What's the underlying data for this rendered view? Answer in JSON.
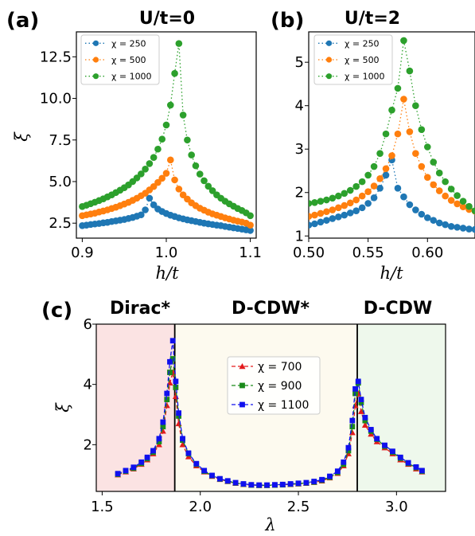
{
  "chart_data": [
    {
      "panel": "(a)",
      "type": "scatter",
      "title": "U/t=0",
      "xlabel": "h/t",
      "ylabel": "ξ",
      "xlim": [
        0.893,
        1.107
      ],
      "ylim": [
        1.6,
        14.0
      ],
      "xticks": [
        "0.9",
        "1.0",
        "1.1"
      ],
      "yticks": [
        "2.5",
        "5.0",
        "7.5",
        "10.0",
        "12.5"
      ],
      "legend_position": "upper left",
      "series": [
        {
          "name": "χ = 250",
          "color": "#1f77b4",
          "x": [
            0.9,
            0.905,
            0.91,
            0.915,
            0.92,
            0.925,
            0.93,
            0.935,
            0.94,
            0.945,
            0.95,
            0.955,
            0.96,
            0.965,
            0.97,
            0.975,
            0.98,
            0.985,
            0.99,
            0.995,
            1.0,
            1.005,
            1.01,
            1.015,
            1.02,
            1.025,
            1.03,
            1.035,
            1.04,
            1.045,
            1.05,
            1.055,
            1.06,
            1.065,
            1.07,
            1.075,
            1.08,
            1.085,
            1.09,
            1.095,
            1.1
          ],
          "y": [
            2.35,
            2.38,
            2.42,
            2.45,
            2.48,
            2.52,
            2.55,
            2.6,
            2.64,
            2.68,
            2.72,
            2.78,
            2.84,
            2.92,
            3.0,
            3.3,
            4.0,
            3.6,
            3.35,
            3.2,
            3.08,
            2.98,
            2.9,
            2.82,
            2.76,
            2.7,
            2.65,
            2.6,
            2.55,
            2.5,
            2.46,
            2.42,
            2.38,
            2.35,
            2.3,
            2.26,
            2.22,
            2.18,
            2.14,
            2.1,
            2.06
          ]
        },
        {
          "name": "χ = 500",
          "color": "#ff7f0e",
          "x": [
            0.9,
            0.905,
            0.91,
            0.915,
            0.92,
            0.925,
            0.93,
            0.935,
            0.94,
            0.945,
            0.95,
            0.955,
            0.96,
            0.965,
            0.97,
            0.975,
            0.98,
            0.985,
            0.99,
            0.995,
            1.0,
            1.005,
            1.01,
            1.015,
            1.02,
            1.025,
            1.03,
            1.035,
            1.04,
            1.045,
            1.05,
            1.055,
            1.06,
            1.065,
            1.07,
            1.075,
            1.08,
            1.085,
            1.09,
            1.095,
            1.1
          ],
          "y": [
            2.95,
            3.0,
            3.05,
            3.1,
            3.17,
            3.23,
            3.3,
            3.38,
            3.46,
            3.55,
            3.65,
            3.75,
            3.87,
            4.0,
            4.15,
            4.3,
            4.5,
            4.7,
            4.95,
            5.2,
            5.5,
            6.3,
            5.1,
            4.55,
            4.2,
            3.95,
            3.72,
            3.55,
            3.4,
            3.28,
            3.16,
            3.06,
            2.98,
            2.9,
            2.82,
            2.75,
            2.68,
            2.62,
            2.57,
            2.5,
            2.38
          ]
        },
        {
          "name": "χ = 1000",
          "color": "#2ca02c",
          "x": [
            0.9,
            0.905,
            0.91,
            0.915,
            0.92,
            0.925,
            0.93,
            0.935,
            0.94,
            0.945,
            0.95,
            0.955,
            0.96,
            0.965,
            0.97,
            0.975,
            0.98,
            0.985,
            0.99,
            0.995,
            1.0,
            1.005,
            1.01,
            1.015,
            1.02,
            1.025,
            1.03,
            1.035,
            1.04,
            1.045,
            1.05,
            1.055,
            1.06,
            1.065,
            1.07,
            1.075,
            1.08,
            1.085,
            1.09,
            1.095,
            1.1
          ],
          "y": [
            3.5,
            3.58,
            3.67,
            3.76,
            3.86,
            3.96,
            4.08,
            4.2,
            4.34,
            4.48,
            4.63,
            4.8,
            5.0,
            5.22,
            5.46,
            5.75,
            6.08,
            6.45,
            6.95,
            7.55,
            8.4,
            9.6,
            11.5,
            13.3,
            9.0,
            7.5,
            6.6,
            5.95,
            5.45,
            5.05,
            4.72,
            4.45,
            4.2,
            4.0,
            3.82,
            3.66,
            3.52,
            3.38,
            3.26,
            3.12,
            2.95
          ]
        }
      ]
    },
    {
      "panel": "(b)",
      "type": "scatter",
      "title": "U/t=2",
      "xlabel": "h/t",
      "ylabel": "",
      "xlim": [
        0.5,
        0.64
      ],
      "ylim": [
        0.95,
        5.7
      ],
      "xticks": [
        "0.50",
        "0.55",
        "0.60"
      ],
      "yticks": [
        "1",
        "2",
        "3",
        "4",
        "5"
      ],
      "legend_position": "upper left",
      "series": [
        {
          "name": "χ = 250",
          "color": "#1f77b4",
          "x": [
            0.5,
            0.505,
            0.51,
            0.515,
            0.52,
            0.525,
            0.53,
            0.535,
            0.54,
            0.545,
            0.55,
            0.555,
            0.56,
            0.565,
            0.57,
            0.575,
            0.58,
            0.585,
            0.59,
            0.595,
            0.6,
            0.605,
            0.61,
            0.615,
            0.62,
            0.625,
            0.63,
            0.635,
            0.64
          ],
          "y": [
            1.25,
            1.28,
            1.32,
            1.36,
            1.4,
            1.44,
            1.48,
            1.53,
            1.58,
            1.65,
            1.75,
            1.88,
            2.1,
            2.4,
            2.75,
            2.1,
            1.9,
            1.72,
            1.6,
            1.5,
            1.42,
            1.36,
            1.3,
            1.26,
            1.22,
            1.2,
            1.18,
            1.16,
            1.15
          ]
        },
        {
          "name": "χ = 500",
          "color": "#ff7f0e",
          "x": [
            0.5,
            0.505,
            0.51,
            0.515,
            0.52,
            0.525,
            0.53,
            0.535,
            0.54,
            0.545,
            0.55,
            0.555,
            0.56,
            0.565,
            0.57,
            0.575,
            0.58,
            0.585,
            0.59,
            0.595,
            0.6,
            0.605,
            0.61,
            0.615,
            0.62,
            0.625,
            0.63,
            0.635,
            0.64
          ],
          "y": [
            1.45,
            1.48,
            1.52,
            1.56,
            1.6,
            1.65,
            1.7,
            1.76,
            1.83,
            1.92,
            2.02,
            2.15,
            2.32,
            2.55,
            2.85,
            3.35,
            4.15,
            3.4,
            2.9,
            2.6,
            2.35,
            2.18,
            2.04,
            1.92,
            1.82,
            1.74,
            1.67,
            1.61,
            1.57
          ]
        },
        {
          "name": "χ = 1000",
          "color": "#2ca02c",
          "x": [
            0.5,
            0.505,
            0.51,
            0.515,
            0.52,
            0.525,
            0.53,
            0.535,
            0.54,
            0.545,
            0.55,
            0.555,
            0.56,
            0.565,
            0.57,
            0.575,
            0.58,
            0.585,
            0.59,
            0.595,
            0.6,
            0.605,
            0.61,
            0.615,
            0.62,
            0.625,
            0.63,
            0.635,
            0.64
          ],
          "y": [
            1.75,
            1.77,
            1.8,
            1.83,
            1.87,
            1.92,
            1.98,
            2.05,
            2.14,
            2.25,
            2.4,
            2.6,
            2.9,
            3.35,
            3.9,
            4.4,
            5.5,
            4.8,
            4.0,
            3.45,
            3.05,
            2.7,
            2.45,
            2.25,
            2.08,
            1.93,
            1.8,
            1.68,
            1.58
          ]
        }
      ]
    },
    {
      "panel": "(c)",
      "type": "line",
      "title": "",
      "xlabel": "λ",
      "ylabel": "ξ",
      "xlim": [
        1.47,
        3.25
      ],
      "ylim": [
        0.45,
        6.0
      ],
      "xticks": [
        "1.5",
        "2.0",
        "2.5",
        "3.0"
      ],
      "yticks": [
        "2",
        "4",
        "6"
      ],
      "legend_position": "center",
      "phase_boundaries": [
        1.87,
        2.8
      ],
      "regions": [
        {
          "label": "Dirac*",
          "color": "#fbe3e3"
        },
        {
          "label": "D-CDW*",
          "color": "#fdfaef"
        },
        {
          "label": "D-CDW",
          "color": "#eef8ec"
        }
      ],
      "series": [
        {
          "name": "χ = 700",
          "color": "#e31a1c",
          "marker": "triangle",
          "x": [
            1.58,
            1.62,
            1.66,
            1.7,
            1.73,
            1.76,
            1.79,
            1.81,
            1.83,
            1.845,
            1.86,
            1.875,
            1.89,
            1.91,
            1.94,
            1.98,
            2.02,
            2.06,
            2.1,
            2.14,
            2.18,
            2.22,
            2.26,
            2.3,
            2.34,
            2.38,
            2.42,
            2.46,
            2.5,
            2.54,
            2.58,
            2.62,
            2.66,
            2.7,
            2.73,
            2.755,
            2.775,
            2.79,
            2.805,
            2.82,
            2.84,
            2.87,
            2.9,
            2.94,
            2.98,
            3.02,
            3.06,
            3.1,
            3.13
          ],
          "y": [
            1.0,
            1.1,
            1.2,
            1.35,
            1.5,
            1.7,
            2.0,
            2.45,
            3.3,
            4.05,
            4.4,
            3.6,
            2.7,
            2.0,
            1.6,
            1.3,
            1.1,
            0.95,
            0.85,
            0.78,
            0.72,
            0.68,
            0.66,
            0.65,
            0.65,
            0.66,
            0.67,
            0.68,
            0.7,
            0.72,
            0.75,
            0.8,
            0.9,
            1.05,
            1.3,
            1.7,
            2.4,
            3.3,
            3.7,
            3.1,
            2.65,
            2.35,
            2.1,
            1.9,
            1.7,
            1.5,
            1.35,
            1.2,
            1.1
          ]
        },
        {
          "name": "χ = 900",
          "color": "#1a8a1a",
          "marker": "square",
          "x": [
            1.58,
            1.62,
            1.66,
            1.7,
            1.73,
            1.76,
            1.79,
            1.81,
            1.83,
            1.845,
            1.86,
            1.875,
            1.89,
            1.91,
            1.94,
            1.98,
            2.02,
            2.06,
            2.1,
            2.14,
            2.18,
            2.22,
            2.26,
            2.3,
            2.34,
            2.38,
            2.42,
            2.46,
            2.5,
            2.54,
            2.58,
            2.62,
            2.66,
            2.7,
            2.73,
            2.755,
            2.775,
            2.79,
            2.805,
            2.82,
            2.84,
            2.87,
            2.9,
            2.94,
            2.98,
            3.02,
            3.06,
            3.1,
            3.13
          ],
          "y": [
            1.02,
            1.12,
            1.22,
            1.38,
            1.54,
            1.75,
            2.1,
            2.6,
            3.5,
            4.4,
            4.85,
            3.9,
            2.95,
            2.15,
            1.7,
            1.35,
            1.12,
            0.97,
            0.86,
            0.79,
            0.73,
            0.69,
            0.66,
            0.65,
            0.65,
            0.66,
            0.67,
            0.69,
            0.71,
            0.73,
            0.76,
            0.82,
            0.92,
            1.08,
            1.35,
            1.8,
            2.6,
            3.7,
            4.05,
            3.4,
            2.8,
            2.45,
            2.18,
            1.95,
            1.75,
            1.55,
            1.38,
            1.24,
            1.12
          ]
        },
        {
          "name": "χ = 1100",
          "color": "#1010ee",
          "marker": "square",
          "x": [
            1.58,
            1.62,
            1.66,
            1.7,
            1.73,
            1.76,
            1.79,
            1.81,
            1.83,
            1.845,
            1.86,
            1.875,
            1.89,
            1.91,
            1.94,
            1.98,
            2.02,
            2.06,
            2.1,
            2.14,
            2.18,
            2.22,
            2.26,
            2.3,
            2.34,
            2.38,
            2.42,
            2.46,
            2.5,
            2.54,
            2.58,
            2.62,
            2.66,
            2.7,
            2.73,
            2.755,
            2.775,
            2.79,
            2.805,
            2.82,
            2.84,
            2.87,
            2.9,
            2.94,
            2.98,
            3.02,
            3.06,
            3.1,
            3.13
          ],
          "y": [
            1.04,
            1.14,
            1.25,
            1.42,
            1.58,
            1.8,
            2.2,
            2.75,
            3.7,
            4.75,
            5.45,
            4.1,
            3.05,
            2.2,
            1.72,
            1.37,
            1.14,
            0.98,
            0.87,
            0.8,
            0.74,
            0.7,
            0.67,
            0.66,
            0.66,
            0.67,
            0.68,
            0.7,
            0.72,
            0.74,
            0.78,
            0.84,
            0.95,
            1.12,
            1.42,
            1.9,
            2.8,
            3.85,
            4.1,
            3.5,
            2.9,
            2.5,
            2.2,
            1.98,
            1.78,
            1.58,
            1.4,
            1.26,
            1.14
          ]
        }
      ]
    }
  ]
}
